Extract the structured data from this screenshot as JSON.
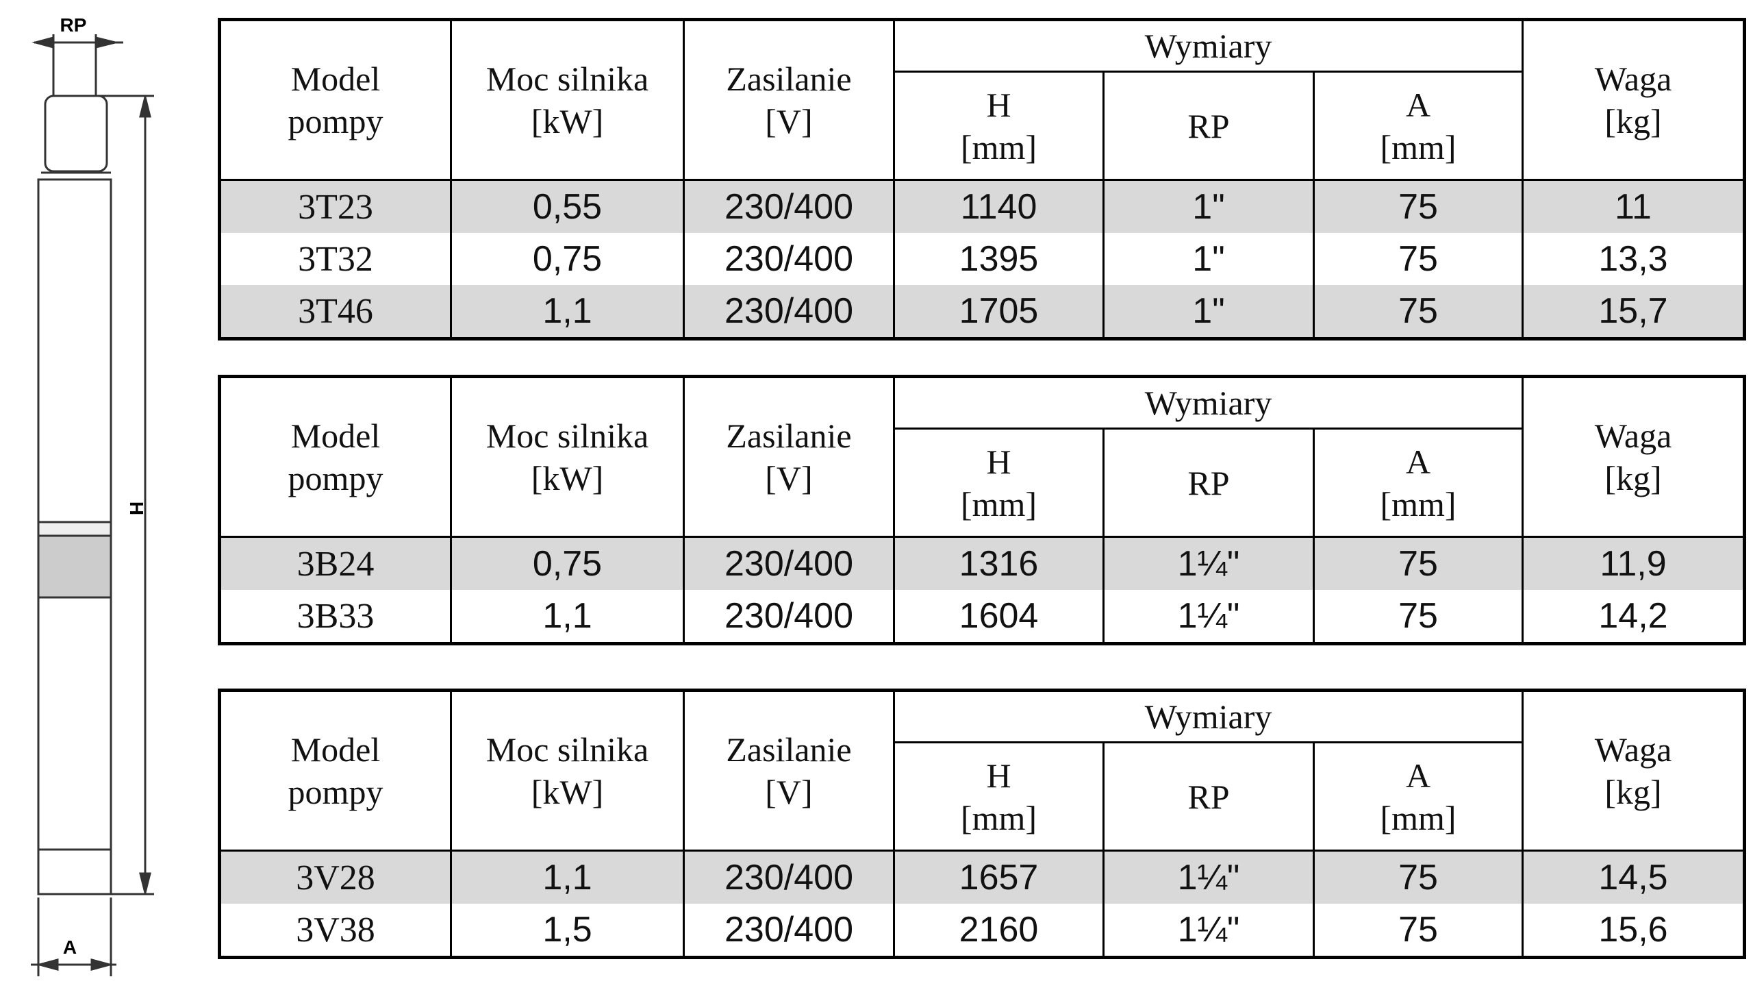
{
  "drawing": {
    "rp": "RP",
    "h": "H",
    "a": "A"
  },
  "tables": [
    {
      "headers": {
        "model": [
          "Model",
          "pompy"
        ],
        "power": [
          "Moc silnika",
          "[kW]"
        ],
        "supply": [
          "Zasilanie",
          "[V]"
        ],
        "dims": [
          "Wymiary"
        ],
        "h": [
          "H",
          "[mm]"
        ],
        "rp": [
          "RP"
        ],
        "a": [
          "A",
          "[mm]"
        ],
        "weight": [
          "Waga",
          "[kg]"
        ]
      },
      "rows": [
        [
          "3T23",
          "0,55",
          "230/400",
          "1140",
          "1\"",
          "75",
          "11"
        ],
        [
          "3T32",
          "0,75",
          "230/400",
          "1395",
          "1\"",
          "75",
          "13,3"
        ],
        [
          "3T46",
          "1,1",
          "230/400",
          "1705",
          "1\"",
          "75",
          "15,7"
        ]
      ]
    },
    {
      "headers": {
        "model": [
          "Model",
          "pompy"
        ],
        "power": [
          "Moc silnika",
          "[kW]"
        ],
        "supply": [
          "Zasilanie",
          "[V]"
        ],
        "dims": [
          "Wymiary"
        ],
        "h": [
          "H",
          "[mm]"
        ],
        "rp": [
          "RP"
        ],
        "a": [
          "A",
          "[mm]"
        ],
        "weight": [
          "Waga",
          "[kg]"
        ]
      },
      "rows": [
        [
          "3B24",
          "0,75",
          "230/400",
          "1316",
          "1¼\"",
          "75",
          "11,9"
        ],
        [
          "3B33",
          "1,1",
          "230/400",
          "1604",
          "1¼\"",
          "75",
          "14,2"
        ]
      ]
    },
    {
      "headers": {
        "model": [
          "Model",
          "pompy"
        ],
        "power": [
          "Moc silnika",
          "[kW]"
        ],
        "supply": [
          "Zasilanie",
          "[V]"
        ],
        "dims": [
          "Wymiary"
        ],
        "h": [
          "H",
          "[mm]"
        ],
        "rp": [
          "RP"
        ],
        "a": [
          "A",
          "[mm]"
        ],
        "weight": [
          "Waga",
          "[kg]"
        ]
      },
      "rows": [
        [
          "3V28",
          "1,1",
          "230/400",
          "1657",
          "1¼\"",
          "75",
          "14,5"
        ],
        [
          "3V38",
          "1,5",
          "230/400",
          "2160",
          "1¼\"",
          "75",
          "15,6"
        ]
      ]
    }
  ]
}
